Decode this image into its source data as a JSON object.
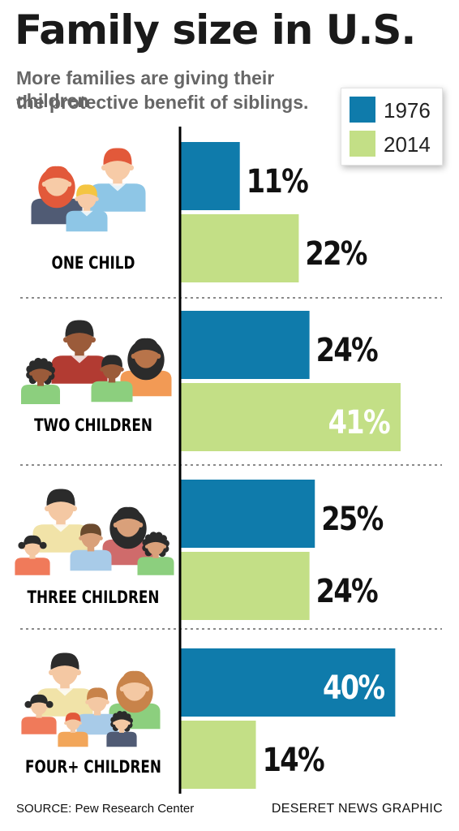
{
  "title": "Family size in U.S.",
  "subtitle_lines": [
    "More families are giving their children",
    "the protective benefit of siblings."
  ],
  "colors": {
    "1976": "#0f7bab",
    "2014": "#c3df86",
    "label_dark": "#111111",
    "label_light": "#ffffff"
  },
  "legend": [
    {
      "label": "1976",
      "color": "#0f7bab"
    },
    {
      "label": "2014",
      "color": "#c3df86"
    }
  ],
  "chart_data": {
    "type": "bar",
    "orientation": "horizontal",
    "categories": [
      "ONE CHILD",
      "TWO CHILDREN",
      "THREE CHILDREN",
      "FOUR+ CHILDREN"
    ],
    "series": [
      {
        "name": "1976",
        "values": [
          11,
          24,
          25,
          40
        ],
        "labels": [
          "11%",
          "24%",
          "25%",
          "40%"
        ]
      },
      {
        "name": "2014",
        "values": [
          22,
          41,
          24,
          14
        ],
        "labels": [
          "22%",
          "41%",
          "24%",
          "14%"
        ]
      }
    ],
    "xlim": [
      0,
      41
    ],
    "legend_position": "top-right",
    "grid": false
  },
  "icons": [
    "family-one-child-icon",
    "family-two-children-icon",
    "family-three-children-icon",
    "family-four-children-icon"
  ],
  "footer": {
    "source": "SOURCE: Pew Research Center",
    "credit": "DESERET NEWS GRAPHIC"
  }
}
